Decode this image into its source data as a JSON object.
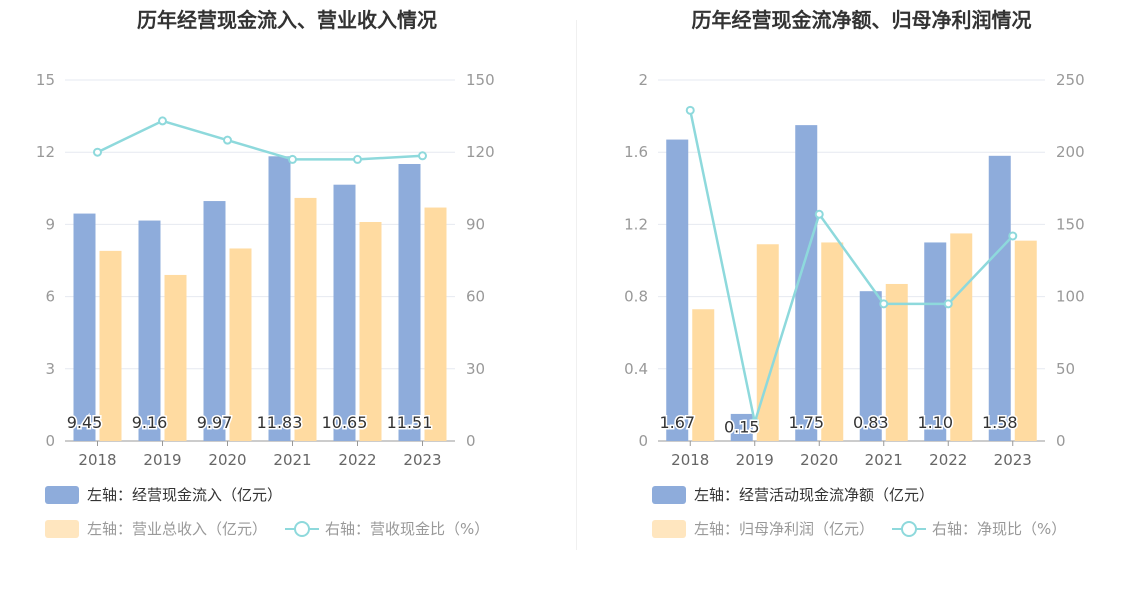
{
  "colors": {
    "bar_primary": "#8eacdb",
    "bar_secondary": "#ffdba1",
    "line": "#8ed9dc",
    "grid": "#e6e9f0",
    "tick": "#999999",
    "label": "#333333"
  },
  "chart_data": [
    {
      "type": "bar",
      "title": "历年经营现金流入、营业收入情况",
      "categories": [
        "2018",
        "2019",
        "2020",
        "2021",
        "2022",
        "2023"
      ],
      "y_left": {
        "ylim": [
          0,
          15
        ],
        "ticks": [
          "0",
          "3",
          "6",
          "9",
          "12",
          "15"
        ]
      },
      "y_right": {
        "ylim": [
          0,
          150
        ],
        "ticks": [
          "0",
          "30",
          "60",
          "90",
          "120",
          "150"
        ]
      },
      "series": [
        {
          "name": "左轴：经营现金流入（亿元）",
          "axis": "left",
          "kind": "bar",
          "values": [
            9.45,
            9.16,
            9.97,
            11.83,
            10.65,
            11.51
          ],
          "labels": [
            "9.45",
            "9.16",
            "9.97",
            "11.83",
            "10.65",
            "11.51"
          ]
        },
        {
          "name": "左轴：营业总收入（亿元）",
          "axis": "left",
          "kind": "bar",
          "values": [
            7.9,
            6.9,
            8.0,
            10.1,
            9.1,
            9.7
          ]
        },
        {
          "name": "右轴：营收现金比（%）",
          "axis": "right",
          "kind": "line",
          "values": [
            120,
            133,
            125,
            117,
            117,
            118.5
          ]
        }
      ]
    },
    {
      "type": "bar",
      "title": "历年经营现金流净额、归母净利润情况",
      "categories": [
        "2018",
        "2019",
        "2020",
        "2021",
        "2022",
        "2023"
      ],
      "y_left": {
        "ylim": [
          0,
          2
        ],
        "ticks": [
          "0",
          "0.4",
          "0.8",
          "1.2",
          "1.6",
          "2"
        ]
      },
      "y_right": {
        "ylim": [
          0,
          250
        ],
        "ticks": [
          "0",
          "50",
          "100",
          "150",
          "200",
          "250"
        ]
      },
      "series": [
        {
          "name": "左轴：经营活动现金流净额（亿元）",
          "axis": "left",
          "kind": "bar",
          "values": [
            1.67,
            0.15,
            1.75,
            0.83,
            1.1,
            1.58
          ],
          "labels": [
            "1.67",
            "0.15",
            "1.75",
            "0.83",
            "1.10",
            "1.58"
          ]
        },
        {
          "name": "左轴：归母净利润（亿元）",
          "axis": "left",
          "kind": "bar",
          "values": [
            0.73,
            1.09,
            1.1,
            0.87,
            1.15,
            1.11
          ]
        },
        {
          "name": "右轴：净现比（%）",
          "axis": "right",
          "kind": "line",
          "values": [
            229,
            13,
            157,
            95,
            95,
            142
          ]
        }
      ]
    }
  ]
}
